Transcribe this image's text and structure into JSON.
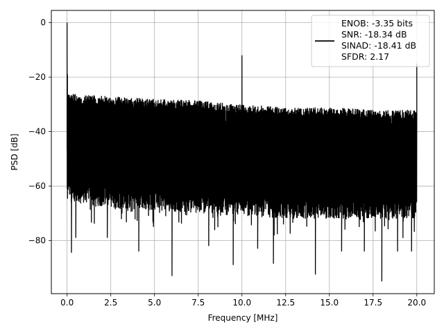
{
  "chart_data": {
    "type": "line",
    "title": "",
    "xlabel": "Frequency [MHz]",
    "ylabel": "PSD [dB]",
    "xlim": [
      -0.9,
      21.0
    ],
    "ylim": [
      -99.5,
      4.5
    ],
    "xticks": [
      0.0,
      2.5,
      5.0,
      7.5,
      10.0,
      12.5,
      15.0,
      17.5,
      20.0
    ],
    "xtick_labels": [
      "0.0",
      "2.5",
      "5.0",
      "7.5",
      "10.0",
      "12.5",
      "15.0",
      "17.5",
      "20.0"
    ],
    "yticks": [
      0,
      -20,
      -40,
      -60,
      -80
    ],
    "ytick_labels": [
      "0",
      "−20",
      "−40",
      "−60",
      "−80"
    ],
    "grid": true,
    "legend_position": "top-right",
    "series": [
      {
        "name": "ENOB: -3.35 bits\nSNR: -18.34 dB\nSINAD: -18.41 dB\nSFDR: 2.17",
        "color": "#000000",
        "x_start": 0.0,
        "x_end": 20.0,
        "envelope_upper": [
          [
            0.0,
            -26
          ],
          [
            2.5,
            -27
          ],
          [
            5.0,
            -28
          ],
          [
            7.5,
            -28.5
          ],
          [
            10.0,
            -30
          ],
          [
            12.5,
            -31
          ],
          [
            15.0,
            -31
          ],
          [
            17.5,
            -32
          ],
          [
            20.0,
            -32
          ]
        ],
        "envelope_lower_typical": [
          [
            0.0,
            -66
          ],
          [
            2.5,
            -68
          ],
          [
            5.0,
            -69
          ],
          [
            7.5,
            -70
          ],
          [
            10.0,
            -71
          ],
          [
            12.5,
            -72
          ],
          [
            15.0,
            -72
          ],
          [
            17.5,
            -72
          ],
          [
            20.0,
            -72
          ]
        ],
        "spikes": [
          [
            0.0,
            0.0
          ],
          [
            0.02,
            -19
          ],
          [
            10.0,
            -12
          ],
          [
            20.0,
            -15
          ]
        ],
        "notable_dips": [
          [
            0.25,
            -84.5
          ],
          [
            0.5,
            -79
          ],
          [
            2.3,
            -79
          ],
          [
            4.1,
            -84
          ],
          [
            6.0,
            -93
          ],
          [
            8.1,
            -82
          ],
          [
            9.5,
            -89
          ],
          [
            10.9,
            -83
          ],
          [
            11.8,
            -88.5
          ],
          [
            14.2,
            -92.5
          ],
          [
            15.7,
            -84
          ],
          [
            17.0,
            -84
          ],
          [
            18.0,
            -95
          ],
          [
            18.9,
            -84
          ],
          [
            19.7,
            -84
          ]
        ]
      }
    ]
  }
}
